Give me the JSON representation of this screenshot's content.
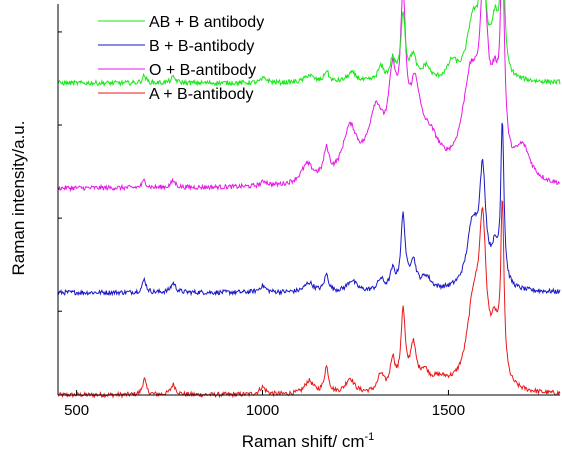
{
  "chart_data": {
    "type": "line",
    "xlabel": "Raman shift/ cm",
    "xlabel_sup": "-1",
    "ylabel": "Raman intensity/a.u.",
    "xlim": [
      450,
      1800
    ],
    "ylim": [
      0,
      4.2
    ],
    "x_ticks": [
      500,
      1000,
      1500
    ],
    "x_tick_labels": [
      "500",
      "1000",
      "1500"
    ],
    "y_tick_values": [
      0.9,
      1.9,
      2.9,
      3.9
    ],
    "legend_position": "top-left",
    "grid": false,
    "series": [
      {
        "name": "A + B-antibody",
        "color": "#e8191b",
        "baseline": 0.0,
        "peaks": [
          [
            682,
            0.17,
            6
          ],
          [
            760,
            0.11,
            8
          ],
          [
            1000,
            0.08,
            10
          ],
          [
            1125,
            0.14,
            14
          ],
          [
            1172,
            0.28,
            7
          ],
          [
            1235,
            0.16,
            14
          ],
          [
            1318,
            0.18,
            10
          ],
          [
            1350,
            0.33,
            8
          ],
          [
            1378,
            0.82,
            7
          ],
          [
            1405,
            0.45,
            10
          ],
          [
            1435,
            0.16,
            15
          ],
          [
            1475,
            0.12,
            35
          ],
          [
            1568,
            0.9,
            22
          ],
          [
            1592,
            1.48,
            11
          ],
          [
            1625,
            0.55,
            15
          ],
          [
            1645,
            1.82,
            5
          ]
        ]
      },
      {
        "name": "B + B-antibody",
        "color": "#1a17c4",
        "baseline": 1.1,
        "peaks": [
          [
            682,
            0.14,
            6
          ],
          [
            760,
            0.1,
            8
          ],
          [
            1000,
            0.07,
            10
          ],
          [
            1125,
            0.1,
            14
          ],
          [
            1172,
            0.18,
            7
          ],
          [
            1240,
            0.12,
            15
          ],
          [
            1318,
            0.12,
            10
          ],
          [
            1350,
            0.2,
            8
          ],
          [
            1378,
            0.78,
            7
          ],
          [
            1405,
            0.3,
            10
          ],
          [
            1440,
            0.14,
            15
          ],
          [
            1565,
            0.68,
            18
          ],
          [
            1592,
            1.15,
            10
          ],
          [
            1625,
            0.35,
            12
          ],
          [
            1645,
            1.72,
            5
          ]
        ]
      },
      {
        "name": "O + B-antibody",
        "color": "#e61ae6",
        "baseline": 2.22,
        "peaks": [
          [
            682,
            0.08,
            6
          ],
          [
            760,
            0.07,
            8
          ],
          [
            1005,
            0.05,
            10
          ],
          [
            1120,
            0.2,
            20
          ],
          [
            1172,
            0.3,
            9
          ],
          [
            1235,
            0.55,
            25
          ],
          [
            1305,
            0.7,
            25
          ],
          [
            1350,
            0.9,
            14
          ],
          [
            1378,
            1.55,
            9
          ],
          [
            1410,
            0.8,
            18
          ],
          [
            1450,
            0.4,
            35
          ],
          [
            1560,
            1.05,
            28
          ],
          [
            1595,
            1.7,
            12
          ],
          [
            1625,
            0.75,
            15
          ],
          [
            1645,
            2.2,
            6
          ],
          [
            1700,
            0.35,
            25
          ]
        ]
      },
      {
        "name": "AB + B antibody",
        "color": "#19e619",
        "baseline": 3.35,
        "peaks": [
          [
            682,
            0.08,
            6
          ],
          [
            760,
            0.06,
            8
          ],
          [
            1005,
            0.05,
            10
          ],
          [
            1125,
            0.08,
            14
          ],
          [
            1172,
            0.12,
            7
          ],
          [
            1240,
            0.1,
            15
          ],
          [
            1318,
            0.15,
            10
          ],
          [
            1350,
            0.22,
            8
          ],
          [
            1378,
            0.72,
            7
          ],
          [
            1405,
            0.25,
            10
          ],
          [
            1440,
            0.15,
            12
          ],
          [
            1510,
            0.18,
            15
          ],
          [
            1565,
            0.6,
            18
          ],
          [
            1592,
            1.15,
            10
          ],
          [
            1625,
            0.55,
            12
          ],
          [
            1645,
            1.9,
            5
          ]
        ]
      }
    ]
  }
}
